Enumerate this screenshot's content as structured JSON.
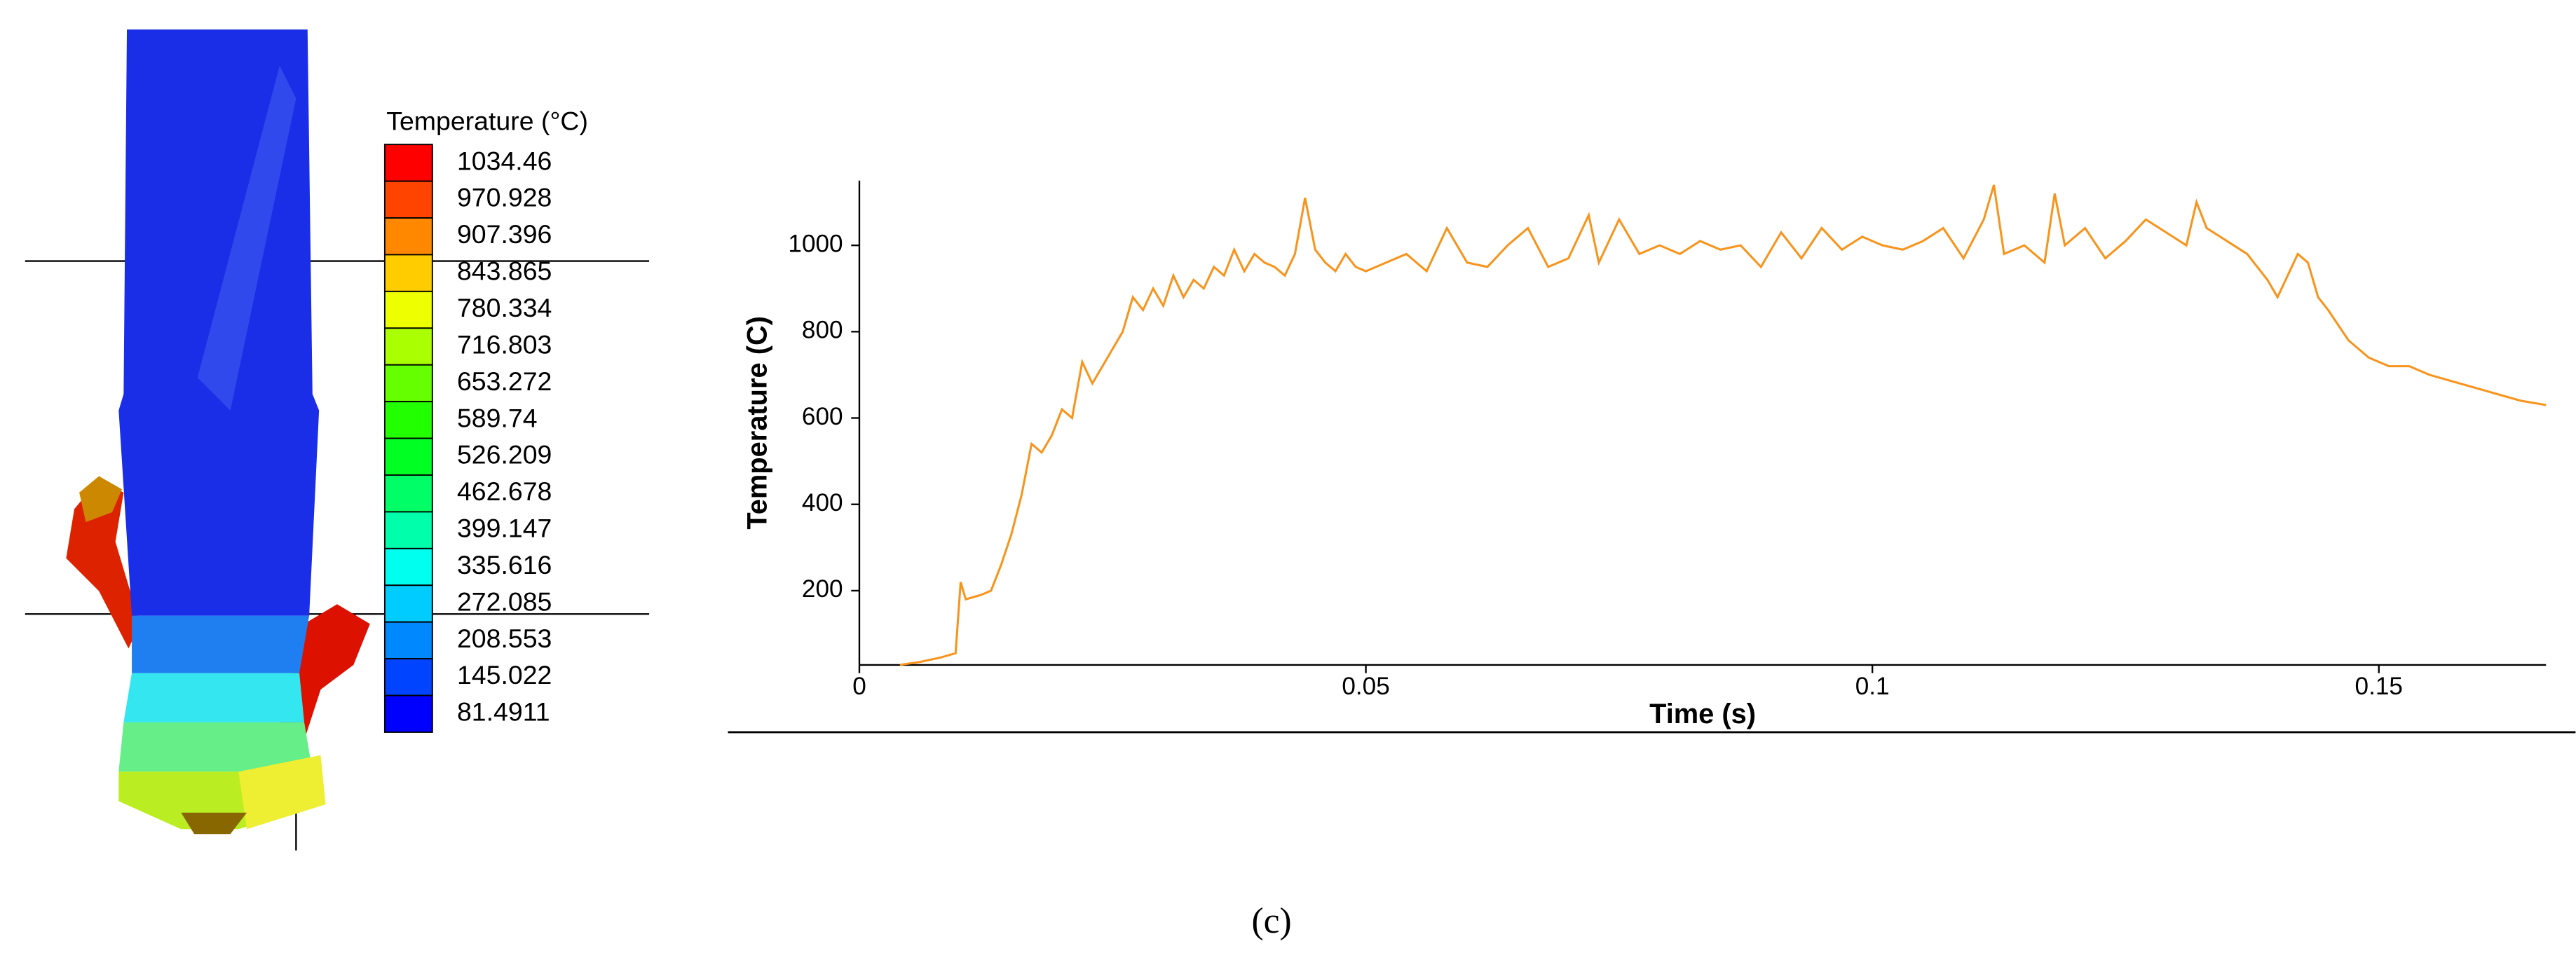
{
  "contour_legend": {
    "title": "Temperature (°C)",
    "levels": [
      {
        "label": "1034.46",
        "color": "#ff0000"
      },
      {
        "label": "970.928",
        "color": "#ff4400"
      },
      {
        "label": "907.396",
        "color": "#ff8800"
      },
      {
        "label": "843.865",
        "color": "#ffcc00"
      },
      {
        "label": "780.334",
        "color": "#eeff00"
      },
      {
        "label": "716.803",
        "color": "#aaff00"
      },
      {
        "label": "653.272",
        "color": "#66ff00"
      },
      {
        "label": "589.74",
        "color": "#22ff00"
      },
      {
        "label": "526.209",
        "color": "#00ff22"
      },
      {
        "label": "462.678",
        "color": "#00ff66"
      },
      {
        "label": "399.147",
        "color": "#00ffaa"
      },
      {
        "label": "335.616",
        "color": "#00ffee"
      },
      {
        "label": "272.085",
        "color": "#00ccff"
      },
      {
        "label": "208.553",
        "color": "#0088ff"
      },
      {
        "label": "145.022",
        "color": "#0044ff"
      },
      {
        "label": "81.4911",
        "color": "#0000ff"
      }
    ]
  },
  "chart_data": {
    "type": "line",
    "x_label": "Time (s)",
    "y_label": "Temperature (C)",
    "x": [
      0.004,
      0.006,
      0.008,
      0.0095,
      0.01,
      0.0105,
      0.012,
      0.013,
      0.014,
      0.015,
      0.016,
      0.017,
      0.018,
      0.019,
      0.02,
      0.021,
      0.022,
      0.023,
      0.024,
      0.025,
      0.026,
      0.027,
      0.028,
      0.029,
      0.03,
      0.031,
      0.032,
      0.033,
      0.034,
      0.035,
      0.036,
      0.037,
      0.038,
      0.039,
      0.04,
      0.041,
      0.042,
      0.043,
      0.044,
      0.045,
      0.046,
      0.047,
      0.048,
      0.049,
      0.05,
      0.052,
      0.054,
      0.056,
      0.058,
      0.06,
      0.062,
      0.064,
      0.066,
      0.068,
      0.07,
      0.072,
      0.073,
      0.075,
      0.077,
      0.079,
      0.081,
      0.083,
      0.085,
      0.087,
      0.089,
      0.091,
      0.093,
      0.095,
      0.097,
      0.099,
      0.101,
      0.103,
      0.105,
      0.107,
      0.109,
      0.111,
      0.112,
      0.113,
      0.115,
      0.117,
      0.118,
      0.119,
      0.121,
      0.123,
      0.125,
      0.127,
      0.129,
      0.131,
      0.132,
      0.133,
      0.135,
      0.137,
      0.139,
      0.14,
      0.142,
      0.143,
      0.144,
      0.145,
      0.147,
      0.148,
      0.149,
      0.151,
      0.153,
      0.155,
      0.158,
      0.161,
      0.164,
      0.1665
    ],
    "series": [
      {
        "name": "Temperature",
        "color": "#f7941d",
        "values": [
          28,
          35,
          45,
          55,
          220,
          180,
          190,
          200,
          260,
          330,
          420,
          540,
          520,
          560,
          620,
          600,
          730,
          680,
          720,
          760,
          800,
          880,
          850,
          900,
          860,
          930,
          880,
          920,
          900,
          950,
          930,
          990,
          940,
          980,
          960,
          950,
          930,
          980,
          1110,
          990,
          960,
          940,
          980,
          950,
          940,
          960,
          980,
          940,
          1040,
          960,
          950,
          1000,
          1040,
          950,
          970,
          1070,
          960,
          1060,
          980,
          1000,
          980,
          1010,
          990,
          1000,
          950,
          1030,
          970,
          1040,
          990,
          1020,
          1000,
          990,
          1010,
          1040,
          970,
          1060,
          1140,
          980,
          1000,
          960,
          1120,
          1000,
          1040,
          970,
          1010,
          1060,
          1030,
          1000,
          1100,
          1040,
          1010,
          980,
          920,
          880,
          980,
          960,
          880,
          850,
          780,
          760,
          740,
          720,
          720,
          700,
          680,
          660,
          640,
          630
        ]
      }
    ],
    "xlim": [
      0,
      0.1665
    ],
    "ylim": [
      28,
      1150
    ],
    "xticks": [
      0,
      0.05,
      0.1,
      0.15
    ],
    "yticks": [
      200,
      400,
      600,
      800,
      1000
    ]
  },
  "caption": "(c)"
}
